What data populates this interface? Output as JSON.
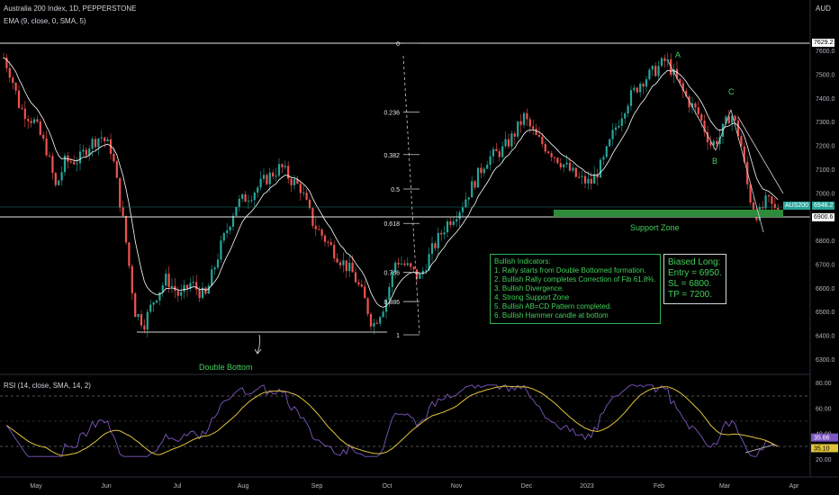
{
  "header": {
    "title": "Australia 200 Index, 1D, PEPPERSTONE",
    "ema": "EMA (9, close, 0, SMA, 5)",
    "currency": "AUD"
  },
  "price_axis": {
    "ticks": [
      "7600.0",
      "7500.0",
      "7400.0",
      "7300.0",
      "7200.0",
      "7100.0",
      "7000.0",
      "6800.0",
      "6700.0",
      "6600.0",
      "6500.0",
      "6400.0",
      "6300.0"
    ],
    "tick_values": [
      7600,
      7500,
      7400,
      7300,
      7200,
      7100,
      7000,
      6800,
      6700,
      6600,
      6500,
      6400,
      6300
    ],
    "level_high": "7629.2",
    "last_symbol": "AUS200",
    "last_price": "6948.2",
    "level_low": "6900.6"
  },
  "time_axis": {
    "labels": [
      "May",
      "Jun",
      "Jul",
      "Aug",
      "Sep",
      "Oct",
      "Nov",
      "Dec",
      "2023",
      "Feb",
      "Mar",
      "Apr"
    ]
  },
  "fib": {
    "levels": [
      "0",
      "0.236",
      "0.382",
      "0.5",
      "0.618",
      "0.786",
      "0.886",
      "1"
    ],
    "values": [
      0,
      0.236,
      0.382,
      0.5,
      0.618,
      0.786,
      0.886,
      1
    ]
  },
  "annotations": {
    "double_bottom": "Double Bottom",
    "support_zone": "Support Zone",
    "point_a": "A",
    "point_b": "B",
    "point_c": "C"
  },
  "indicators_box": {
    "title": "Bullish Indicators:",
    "lines": [
      "1. Rally starts from Double Bottomed formation.",
      "2. Bullish Rally completes Correction of Fib 61.8%.",
      "3. Bullish Divergence.",
      "4. Strong Support Zone",
      "5. Bullish AB=CD Pattern completed.",
      "6. Bullish Hammer candle at bottom"
    ]
  },
  "trade_box": {
    "lines": [
      "Biased Long:",
      "Entry = 6950.",
      "SL = 6800.",
      "TP = 7200."
    ]
  },
  "rsi": {
    "title": "RSI (14, close, SMA, 14, 2)",
    "ticks": [
      "80.00",
      "60.00",
      "40.00",
      "20.00"
    ],
    "tick_values": [
      80,
      60,
      40,
      20
    ],
    "last_rsi": "35.66",
    "last_sma": "35.10"
  },
  "colors": {
    "up": "#26a69a",
    "down": "#ef5350",
    "ema": "#ffffff",
    "rsi": "#7e57c2",
    "rsi_ma": "#e0c33c",
    "annotation": "#41d05a"
  }
}
